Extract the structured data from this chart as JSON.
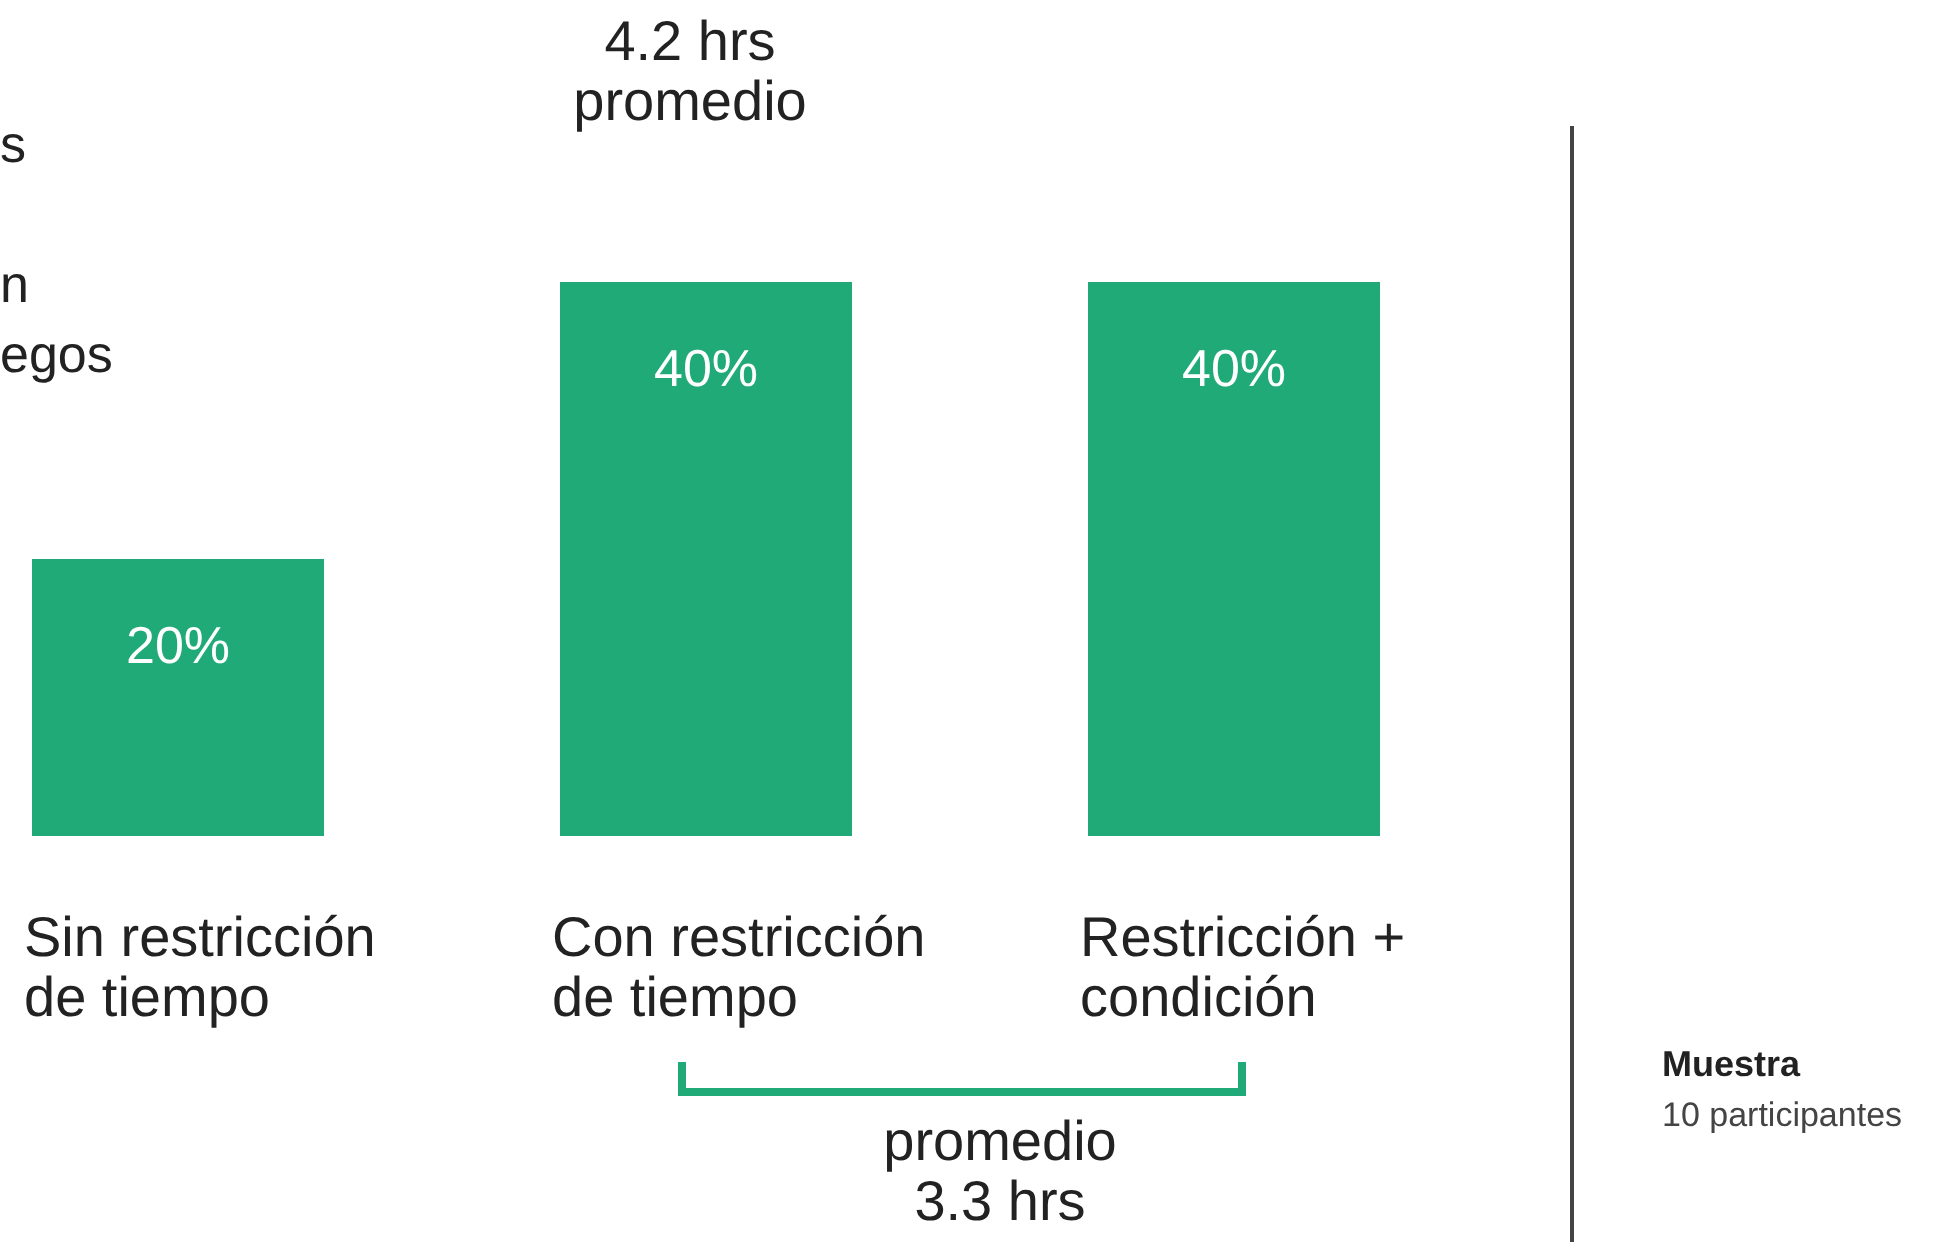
{
  "chart_data": {
    "type": "bar",
    "categories": [
      "Sin restricción\nde tiempo",
      "Con restricción\nde tiempo",
      "Restricción +\ncondición"
    ],
    "values": [
      20,
      40,
      40
    ],
    "value_labels": [
      "20%",
      "40%",
      "40%"
    ],
    "color": "#1faa77",
    "annotations": [
      "s",
      "n",
      "egos",
      "4.2 hrs\npromedio",
      "promedio\n3.3 hrs",
      "Muestra",
      "10 participantes"
    ]
  }
}
